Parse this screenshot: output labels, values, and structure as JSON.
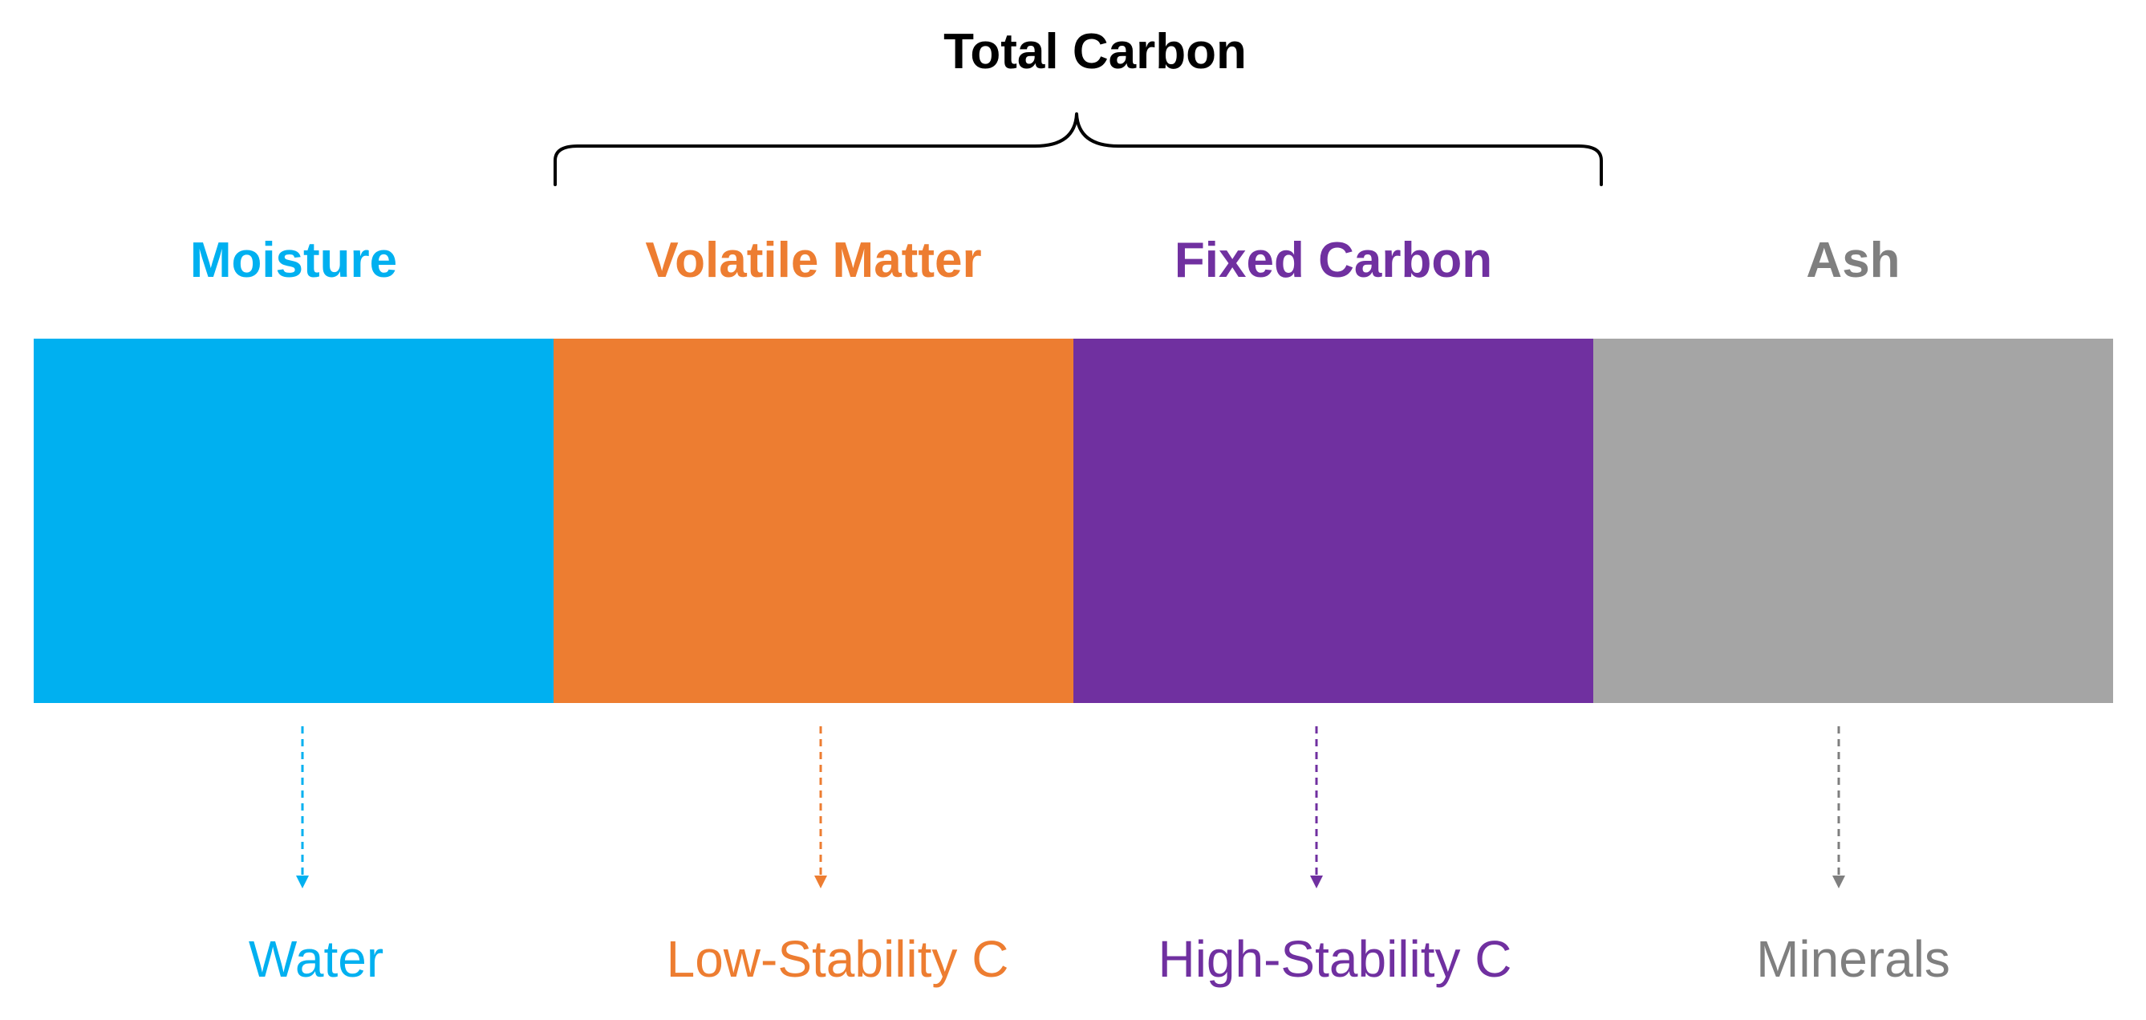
{
  "title": "Total Carbon",
  "components": [
    {
      "label": "Moisture",
      "output": "Water",
      "color": "#00b0f0"
    },
    {
      "label": "Volatile Matter",
      "output": "Low-Stability C",
      "color": "#ed7d31"
    },
    {
      "label": "Fixed Carbon",
      "output": "High-Stability C",
      "color": "#7030a0"
    },
    {
      "label": "Ash",
      "output": "Minerals",
      "color": "#a5a5a5",
      "label_color": "#7f7f7f",
      "output_color": "#7f7f7f"
    }
  ]
}
